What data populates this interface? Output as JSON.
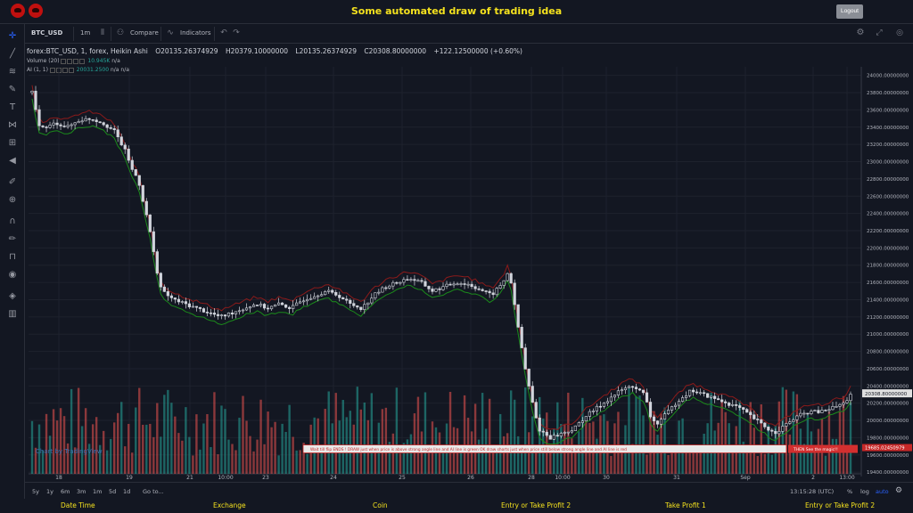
{
  "app": {
    "title": "Some automated draw of trading idea",
    "logout_label": "Logout"
  },
  "toolbar": {
    "symbol": "BTC_USD",
    "interval": "1m",
    "compare_label": "Compare",
    "indicators_label": "Indicators"
  },
  "legend": {
    "series": "forex:BTC_USD, 1, forex, Heikin Ashi",
    "open": "O20135.26374929",
    "high": "H20379.10000000",
    "low": "L20135.26374929",
    "close": "C20308.80000000",
    "change": "+122.12500000 (+0.60%)",
    "volume_label": "Volume (20)",
    "volume_value": "10.945K",
    "volume_na": "n/a",
    "ai_label": "AI (1, 1)",
    "ai_value": "20031.2500",
    "ai_na1": "n/a",
    "ai_na2": "n/a"
  },
  "annotation": {
    "strip_text": "Wait till flip ENDS  !   DRAW just when  price is above strong angle line and AI line is green       OK        draw shorts just when price still below strong angle line and AI line is red",
    "magic_text": "THEN See the magic!!"
  },
  "watermark": "Chart by TradingView",
  "bottom": {
    "ranges": [
      "5y",
      "1y",
      "6m",
      "3m",
      "1m",
      "5d",
      "1d"
    ],
    "goto": "Go to...",
    "time": "13:15:28 (UTC)",
    "percent": "%",
    "log": "log",
    "auto": "auto"
  },
  "footer": [
    "Date Time",
    "Exchange",
    "Coin",
    "Entry or Take Profit 2",
    "Take Profit 1",
    "Entry or Take Profit 2"
  ],
  "colors": {
    "up": "#26a69a",
    "down": "#ef5350",
    "ai_line": "#1b8a1b",
    "upper_line": "#8b1a1a",
    "price_label": "#e0e0e0",
    "price_marker": "#c62828",
    "title": "#f5e21e"
  },
  "chart_data": {
    "type": "candlestick",
    "y_ticks": [
      "24000.00000000",
      "23800.00000000",
      "23600.00000000",
      "23400.00000000",
      "23200.00000000",
      "23000.00000000",
      "22800.00000000",
      "22600.00000000",
      "22400.00000000",
      "22200.00000000",
      "22000.00000000",
      "21800.00000000",
      "21600.00000000",
      "21400.00000000",
      "21200.00000000",
      "21000.00000000",
      "20800.00000000",
      "20600.00000000",
      "20400.00000000",
      "20200.00000000",
      "20000.00000000",
      "19800.00000000",
      "19600.00000000",
      "19400.00000000"
    ],
    "y_range": [
      19350,
      24100
    ],
    "x_ticks": [
      "18",
      "19",
      "21",
      "10:00",
      "23",
      "24",
      "25",
      "26",
      "28",
      "10:00",
      "30",
      "31",
      "Sep",
      "2",
      "13:00"
    ],
    "last_price_label": "20308.80000000",
    "marker_label": "19685.02450979",
    "close_path": [
      [
        0,
        23800
      ],
      [
        0.5,
        23450
      ],
      [
        1,
        23380
      ],
      [
        2,
        23450
      ],
      [
        3,
        23400
      ],
      [
        4,
        23480
      ],
      [
        5,
        23500
      ],
      [
        6,
        23450
      ],
      [
        7,
        23350
      ],
      [
        8,
        23100
      ],
      [
        8.5,
        22900
      ],
      [
        9,
        22800
      ],
      [
        9.5,
        22500
      ],
      [
        10,
        22200
      ],
      [
        10.5,
        21800
      ],
      [
        11,
        21500
      ],
      [
        12,
        21400
      ],
      [
        13,
        21350
      ],
      [
        14,
        21300
      ],
      [
        15,
        21250
      ],
      [
        16,
        21200
      ],
      [
        17,
        21250
      ],
      [
        18,
        21300
      ],
      [
        19,
        21350
      ],
      [
        20,
        21300
      ],
      [
        21,
        21350
      ],
      [
        22,
        21300
      ],
      [
        23,
        21400
      ],
      [
        24,
        21450
      ],
      [
        25,
        21500
      ],
      [
        26,
        21450
      ],
      [
        27,
        21350
      ],
      [
        28,
        21300
      ],
      [
        29,
        21450
      ],
      [
        30,
        21550
      ],
      [
        31,
        21600
      ],
      [
        32,
        21650
      ],
      [
        33,
        21600
      ],
      [
        34,
        21500
      ],
      [
        35,
        21550
      ],
      [
        36,
        21600
      ],
      [
        37,
        21580
      ],
      [
        38,
        21520
      ],
      [
        39,
        21450
      ],
      [
        40,
        21600
      ],
      [
        40.5,
        21750
      ],
      [
        41,
        21300
      ],
      [
        41.5,
        20900
      ],
      [
        42,
        20500
      ],
      [
        42.5,
        20200
      ],
      [
        43,
        19900
      ],
      [
        44,
        19800
      ],
      [
        45,
        19850
      ],
      [
        46,
        19900
      ],
      [
        47,
        20050
      ],
      [
        48,
        20150
      ],
      [
        49,
        20250
      ],
      [
        50,
        20350
      ],
      [
        51,
        20400
      ],
      [
        52,
        20300
      ],
      [
        52.5,
        20050
      ],
      [
        53,
        19950
      ],
      [
        54,
        20100
      ],
      [
        55,
        20250
      ],
      [
        56,
        20350
      ],
      [
        57,
        20300
      ],
      [
        58,
        20250
      ],
      [
        59,
        20200
      ],
      [
        60,
        20150
      ],
      [
        61,
        20050
      ],
      [
        62,
        19950
      ],
      [
        63,
        19850
      ],
      [
        64,
        19950
      ],
      [
        65,
        20050
      ],
      [
        66,
        20100
      ],
      [
        67,
        20100
      ],
      [
        68,
        20150
      ],
      [
        69,
        20200
      ],
      [
        69.5,
        20308
      ]
    ]
  }
}
